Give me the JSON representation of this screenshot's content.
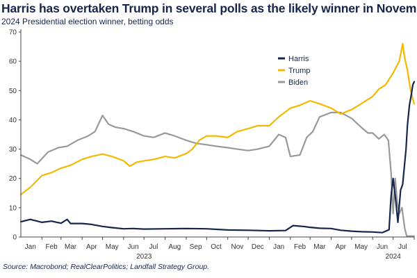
{
  "header": {
    "title": "Harris has overtaken Trump in several polls as the likely winner in November",
    "subtitle": "2024 Presidential election winner, betting odds"
  },
  "footer": {
    "source": "Source: Macrobond; RealClearPolitics; Landfall Strategy Group."
  },
  "chart_data": {
    "type": "line",
    "title": "Harris has overtaken Trump in several polls as the likely winner in November",
    "subtitle": "2024 Presidential election winner, betting odds",
    "xlabel": "",
    "ylabel": "",
    "ylim": [
      0,
      70
    ],
    "yticks": [
      0,
      10,
      20,
      30,
      40,
      50,
      60,
      70
    ],
    "xlim": [
      "2023-01-01",
      "2024-08-01"
    ],
    "xticks": [
      {
        "date": "2023-01-15",
        "label": "Jan"
      },
      {
        "date": "2023-02-15",
        "label": "Feb"
      },
      {
        "date": "2023-03-15",
        "label": "Mar"
      },
      {
        "date": "2023-04-15",
        "label": "Apr"
      },
      {
        "date": "2023-05-15",
        "label": "May"
      },
      {
        "date": "2023-06-15",
        "label": "Jun"
      },
      {
        "date": "2023-07-15",
        "label": "Jul"
      },
      {
        "date": "2023-08-15",
        "label": "Aug"
      },
      {
        "date": "2023-09-15",
        "label": "Sep"
      },
      {
        "date": "2023-10-15",
        "label": "Oct"
      },
      {
        "date": "2023-11-15",
        "label": "Nov"
      },
      {
        "date": "2023-12-15",
        "label": "Dec"
      },
      {
        "date": "2024-01-15",
        "label": "Jan"
      },
      {
        "date": "2024-02-15",
        "label": "Feb"
      },
      {
        "date": "2024-03-15",
        "label": "Mar"
      },
      {
        "date": "2024-04-15",
        "label": "Apr"
      },
      {
        "date": "2024-05-15",
        "label": "May"
      },
      {
        "date": "2024-06-15",
        "label": "Jun"
      },
      {
        "date": "2024-07-15",
        "label": "Jul"
      }
    ],
    "year_labels": [
      {
        "date": "2023-07-01",
        "label": "2023"
      },
      {
        "date": "2024-07-01",
        "label": "2024"
      }
    ],
    "grid": false,
    "legend_position": "top-right",
    "series": [
      {
        "name": "Harris",
        "color": "#16254d",
        "points": [
          [
            "2023-01-01",
            5.2
          ],
          [
            "2023-01-15",
            6.0
          ],
          [
            "2023-02-01",
            5.0
          ],
          [
            "2023-02-15",
            5.4
          ],
          [
            "2023-03-01",
            4.7
          ],
          [
            "2023-03-10",
            6.0
          ],
          [
            "2023-03-15",
            4.6
          ],
          [
            "2023-04-01",
            4.6
          ],
          [
            "2023-04-15",
            4.3
          ],
          [
            "2023-05-01",
            3.6
          ],
          [
            "2023-05-15",
            3.2
          ],
          [
            "2023-06-01",
            2.8
          ],
          [
            "2023-06-15",
            2.9
          ],
          [
            "2023-07-01",
            2.7
          ],
          [
            "2023-08-01",
            2.8
          ],
          [
            "2023-09-01",
            2.9
          ],
          [
            "2023-10-01",
            2.8
          ],
          [
            "2023-11-01",
            2.4
          ],
          [
            "2023-12-01",
            2.3
          ],
          [
            "2024-01-01",
            2.1
          ],
          [
            "2024-01-25",
            2.2
          ],
          [
            "2024-02-05",
            3.9
          ],
          [
            "2024-02-20",
            3.6
          ],
          [
            "2024-03-01",
            3.3
          ],
          [
            "2024-03-15",
            3.0
          ],
          [
            "2024-04-01",
            2.9
          ],
          [
            "2024-04-15",
            2.3
          ],
          [
            "2024-05-01",
            2.0
          ],
          [
            "2024-05-15",
            1.8
          ],
          [
            "2024-06-01",
            1.7
          ],
          [
            "2024-06-15",
            1.5
          ],
          [
            "2024-06-25",
            2.5
          ],
          [
            "2024-06-28",
            14.0
          ],
          [
            "2024-07-01",
            20.0
          ],
          [
            "2024-07-05",
            12.0
          ],
          [
            "2024-07-08",
            5.0
          ],
          [
            "2024-07-12",
            16.0
          ],
          [
            "2024-07-15",
            18.0
          ],
          [
            "2024-07-20",
            30.0
          ],
          [
            "2024-07-22",
            38.0
          ],
          [
            "2024-07-25",
            45.0
          ],
          [
            "2024-07-28",
            49.0
          ],
          [
            "2024-07-30",
            52.0
          ],
          [
            "2024-08-01",
            53.0
          ]
        ]
      },
      {
        "name": "Trump",
        "color": "#f5b800",
        "points": [
          [
            "2023-01-01",
            14.5
          ],
          [
            "2023-01-15",
            17.0
          ],
          [
            "2023-02-01",
            21.0
          ],
          [
            "2023-02-15",
            22.0
          ],
          [
            "2023-03-01",
            23.5
          ],
          [
            "2023-03-15",
            24.5
          ],
          [
            "2023-04-01",
            26.5
          ],
          [
            "2023-04-15",
            27.5
          ],
          [
            "2023-05-01",
            28.3
          ],
          [
            "2023-05-15",
            27.5
          ],
          [
            "2023-06-01",
            26.0
          ],
          [
            "2023-06-10",
            24.2
          ],
          [
            "2023-06-20",
            25.5
          ],
          [
            "2023-07-01",
            26.0
          ],
          [
            "2023-07-15",
            26.5
          ],
          [
            "2023-08-01",
            27.5
          ],
          [
            "2023-08-15",
            27.0
          ],
          [
            "2023-09-01",
            28.5
          ],
          [
            "2023-09-10",
            30.0
          ],
          [
            "2023-09-20",
            33.0
          ],
          [
            "2023-10-01",
            34.5
          ],
          [
            "2023-10-15",
            34.5
          ],
          [
            "2023-11-01",
            34.0
          ],
          [
            "2023-11-15",
            36.0
          ],
          [
            "2023-12-01",
            37.0
          ],
          [
            "2023-12-15",
            38.0
          ],
          [
            "2024-01-01",
            38.0
          ],
          [
            "2024-01-15",
            41.0
          ],
          [
            "2024-02-01",
            44.0
          ],
          [
            "2024-02-15",
            45.0
          ],
          [
            "2024-03-01",
            46.5
          ],
          [
            "2024-03-15",
            45.5
          ],
          [
            "2024-04-01",
            44.0
          ],
          [
            "2024-04-15",
            42.0
          ],
          [
            "2024-05-01",
            43.5
          ],
          [
            "2024-05-15",
            45.5
          ],
          [
            "2024-06-01",
            48.0
          ],
          [
            "2024-06-10",
            50.5
          ],
          [
            "2024-06-20",
            52.0
          ],
          [
            "2024-07-01",
            56.0
          ],
          [
            "2024-07-10",
            60.0
          ],
          [
            "2024-07-15",
            66.0
          ],
          [
            "2024-07-18",
            61.0
          ],
          [
            "2024-07-22",
            57.0
          ],
          [
            "2024-07-26",
            51.0
          ],
          [
            "2024-07-30",
            47.0
          ],
          [
            "2024-08-01",
            45.5
          ]
        ]
      },
      {
        "name": "Biden",
        "color": "#999999",
        "points": [
          [
            "2023-01-01",
            28.0
          ],
          [
            "2023-01-15",
            26.5
          ],
          [
            "2023-01-25",
            25.0
          ],
          [
            "2023-02-10",
            29.0
          ],
          [
            "2023-02-25",
            30.5
          ],
          [
            "2023-03-10",
            31.0
          ],
          [
            "2023-03-25",
            33.0
          ],
          [
            "2023-04-10",
            34.5
          ],
          [
            "2023-04-20",
            36.0
          ],
          [
            "2023-05-01",
            41.5
          ],
          [
            "2023-05-10",
            38.5
          ],
          [
            "2023-05-20",
            37.5
          ],
          [
            "2023-06-01",
            37.0
          ],
          [
            "2023-06-15",
            36.0
          ],
          [
            "2023-07-01",
            34.5
          ],
          [
            "2023-07-15",
            34.0
          ],
          [
            "2023-08-01",
            35.5
          ],
          [
            "2023-08-15",
            34.5
          ],
          [
            "2023-09-01",
            33.0
          ],
          [
            "2023-09-15",
            32.0
          ],
          [
            "2023-10-01",
            31.5
          ],
          [
            "2023-10-15",
            31.0
          ],
          [
            "2023-11-01",
            30.5
          ],
          [
            "2023-11-15",
            30.0
          ],
          [
            "2023-12-01",
            29.5
          ],
          [
            "2023-12-15",
            30.0
          ],
          [
            "2024-01-01",
            31.0
          ],
          [
            "2024-01-15",
            35.0
          ],
          [
            "2024-01-25",
            34.0
          ],
          [
            "2024-02-01",
            27.5
          ],
          [
            "2024-02-15",
            28.0
          ],
          [
            "2024-02-25",
            34.0
          ],
          [
            "2024-03-05",
            36.0
          ],
          [
            "2024-03-15",
            41.0
          ],
          [
            "2024-04-01",
            42.5
          ],
          [
            "2024-04-15",
            42.5
          ],
          [
            "2024-05-01",
            40.5
          ],
          [
            "2024-05-15",
            37.5
          ],
          [
            "2024-05-25",
            35.5
          ],
          [
            "2024-06-01",
            35.5
          ],
          [
            "2024-06-10",
            33.5
          ],
          [
            "2024-06-18",
            35.0
          ],
          [
            "2024-06-24",
            33.0
          ],
          [
            "2024-06-28",
            22.0
          ],
          [
            "2024-07-01",
            8.0
          ],
          [
            "2024-07-04",
            20.0
          ],
          [
            "2024-07-07",
            12.0
          ],
          [
            "2024-07-10",
            8.0
          ],
          [
            "2024-07-14",
            10.0
          ],
          [
            "2024-07-18",
            3.0
          ],
          [
            "2024-07-21",
            0.3
          ],
          [
            "2024-08-01",
            0.3
          ]
        ]
      }
    ]
  }
}
